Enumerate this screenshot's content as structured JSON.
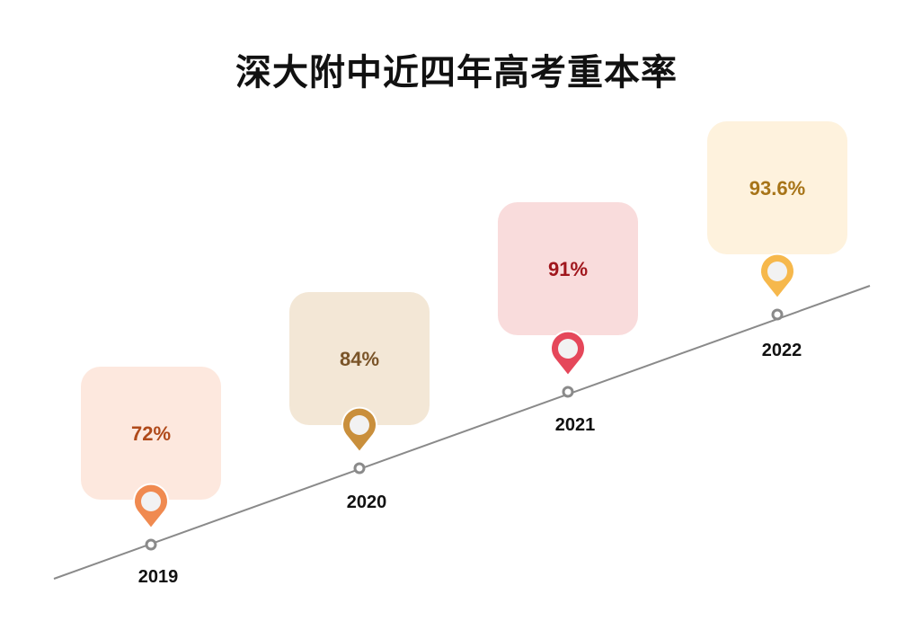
{
  "chart_data": {
    "type": "timeline",
    "title": "深大附中近四年高考重本率",
    "categories": [
      "2019",
      "2020",
      "2021",
      "2022"
    ],
    "values": [
      72,
      84,
      91,
      93.6
    ],
    "value_labels": [
      "72%",
      "84%",
      "91%",
      "93.6%"
    ],
    "unit": "%",
    "series": [
      {
        "name": "重本率",
        "values": [
          72,
          84,
          91,
          93.6
        ]
      }
    ]
  },
  "colors": {
    "card_fills": [
      "#fde8de",
      "#f3e7d6",
      "#f9dcdc",
      "#fef2dd"
    ],
    "pin_colors": [
      "#f08a50",
      "#c98f3c",
      "#e5475a",
      "#f6b84c"
    ],
    "value_text_colors": [
      "#b04a1a",
      "#7a5428",
      "#a0161c",
      "#a77418"
    ],
    "line_color": "#8a8a8a"
  }
}
